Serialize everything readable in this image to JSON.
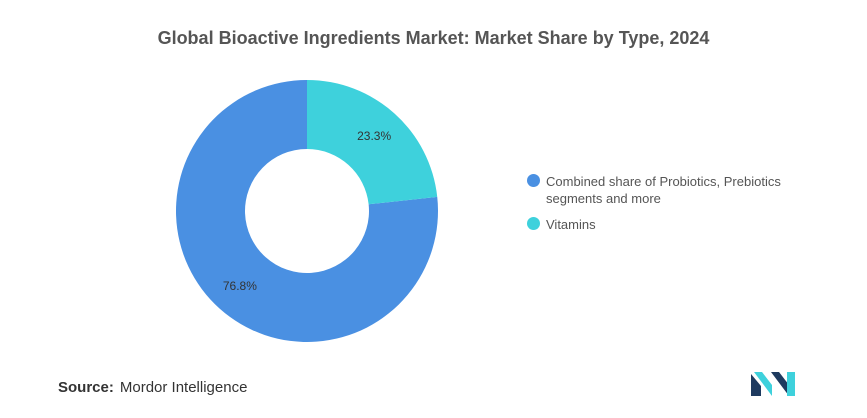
{
  "title": "Global Bioactive Ingredients Market: Market Share by Type, 2024",
  "chart_data": {
    "type": "pie",
    "variant": "donut",
    "title": "Global Bioactive Ingredients Market: Market Share by Type, 2024",
    "slices": [
      {
        "label": "Combined share of Probiotics, Prebiotics segments and more",
        "value": 76.8,
        "display": "76.8%",
        "color": "#4a90e2"
      },
      {
        "label": "Vitamins",
        "value": 23.3,
        "display": "23.3%",
        "color": "#3ed1dc"
      }
    ],
    "legend_position": "right"
  },
  "legend": [
    {
      "label": "Combined share of Probiotics, Prebiotics segments and more",
      "color": "#4a90e2"
    },
    {
      "label": "Vitamins",
      "color": "#3ed1dc"
    }
  ],
  "source": {
    "label": "Source:",
    "value": "Mordor Intelligence"
  },
  "logo": {
    "icon": "mordor-intelligence-logo-icon",
    "colors": [
      "#1e3a5f",
      "#3ed1dc"
    ]
  }
}
